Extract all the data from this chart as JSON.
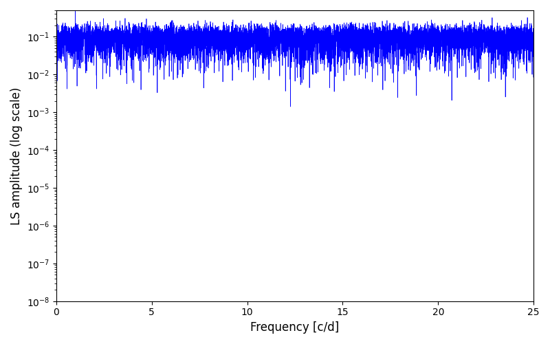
{
  "title": "",
  "xlabel": "Frequency [c/d]",
  "ylabel": "LS amplitude (log scale)",
  "xlim": [
    0,
    25
  ],
  "ylim": [
    1e-08,
    0.5
  ],
  "line_color": "#0000ff",
  "line_width": 0.5,
  "figsize": [
    8.0,
    5.0
  ],
  "dpi": 100,
  "seed": 12345,
  "background_color": "#ffffff",
  "xticks": [
    0,
    5,
    10,
    15,
    20,
    25
  ]
}
